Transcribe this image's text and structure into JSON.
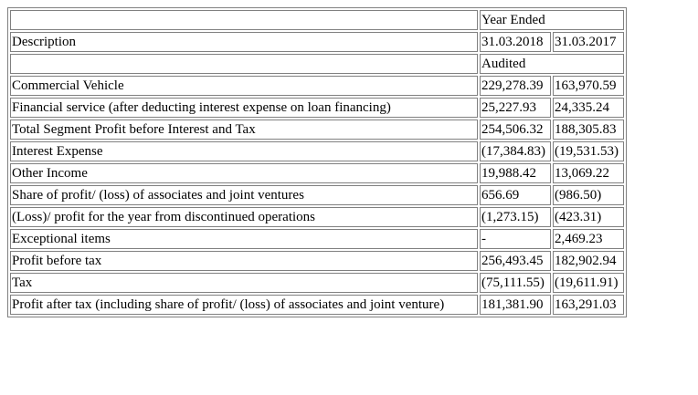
{
  "header": {
    "period_label": "Year Ended",
    "description_label": "Description",
    "col1_date": "31.03.2018",
    "col2_date": "31.03.2017",
    "status_label": "Audited"
  },
  "rows": [
    {
      "description": "Commercial Vehicle",
      "y2018": "229,278.39",
      "y2017": "163,970.59"
    },
    {
      "description": "Financial service (after deducting interest expense on loan financing)",
      "y2018": "25,227.93",
      "y2017": "24,335.24"
    },
    {
      "description": "Total Segment Profit before Interest and Tax",
      "y2018": "254,506.32",
      "y2017": "188,305.83"
    },
    {
      "description": "Interest Expense",
      "y2018": "(17,384.83)",
      "y2017": "(19,531.53)"
    },
    {
      "description": "Other Income",
      "y2018": "19,988.42",
      "y2017": "13,069.22"
    },
    {
      "description": "Share of profit/ (loss) of associates and joint ventures",
      "y2018": "656.69",
      "y2017": "(986.50)"
    },
    {
      "description": "(Loss)/ profit for the year from discontinued operations",
      "y2018": "(1,273.15)",
      "y2017": "(423.31)"
    },
    {
      "description": "Exceptional items",
      "y2018": "-",
      "y2017": "2,469.23"
    },
    {
      "description": "Profit before tax",
      "y2018": "256,493.45",
      "y2017": "182,902.94"
    },
    {
      "description": "Tax",
      "y2018": "(75,111.55)",
      "y2017": "(19,611.91)"
    },
    {
      "description": "Profit after tax (including share of profit/ (loss) of associates and joint venture)",
      "y2018": "181,381.90",
      "y2017": "163,291.03"
    }
  ]
}
